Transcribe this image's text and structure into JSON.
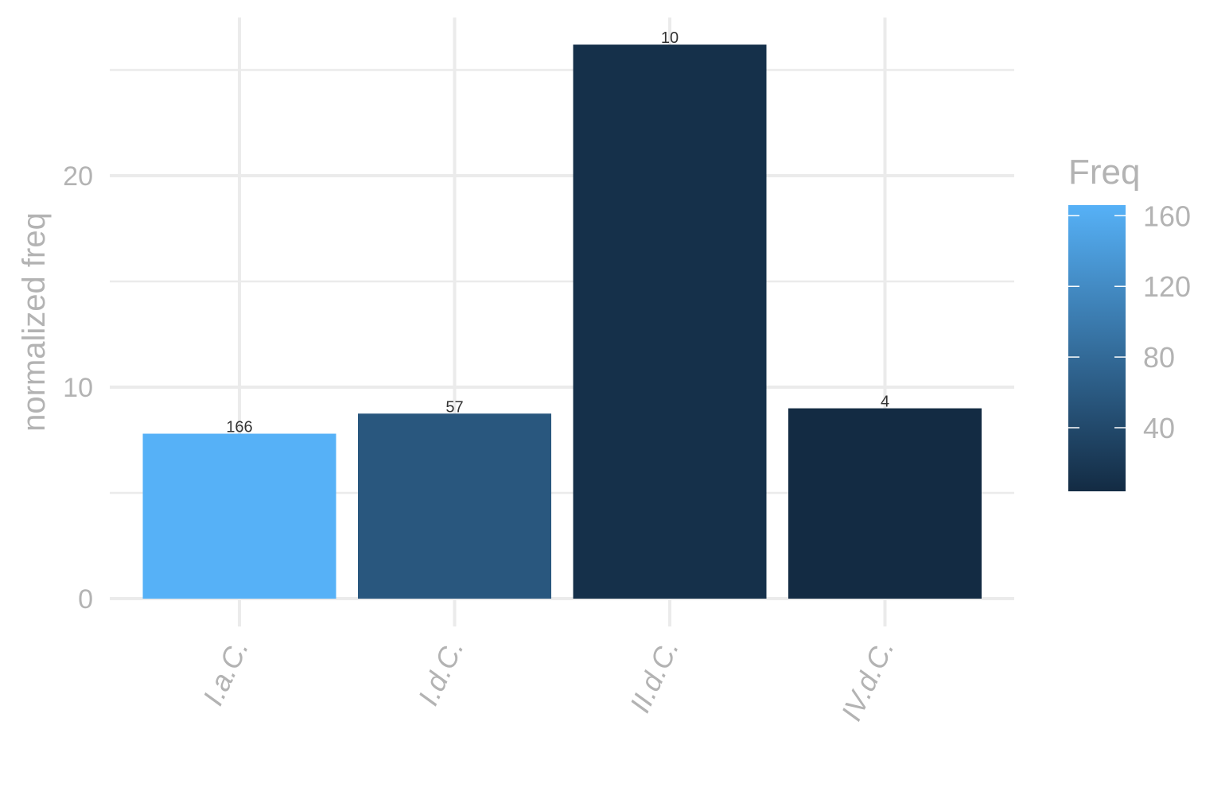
{
  "chart_data": {
    "type": "bar",
    "categories": [
      "I.a.C.",
      "I.d.C.",
      "II.d.C.",
      "IV.d.C."
    ],
    "values": [
      7.8,
      8.75,
      26.2,
      9.0
    ],
    "freq": [
      166,
      57,
      10,
      4
    ],
    "data_labels": [
      "166",
      "57",
      "10",
      "4"
    ],
    "xlabel": "",
    "ylabel": "normalized freq",
    "ylim": [
      0,
      27.5
    ],
    "y_ticks": [
      0,
      10,
      20
    ],
    "y_tick_labels": [
      "0",
      "10",
      "20"
    ],
    "grid": true,
    "legend": {
      "title": "Freq",
      "placement": "right",
      "type": "colorbar",
      "range": [
        4,
        166
      ],
      "ticks": [
        40,
        80,
        120,
        160
      ],
      "tick_labels": [
        "40",
        "80",
        "120",
        "160"
      ],
      "color_low": "#132b43",
      "color_high": "#56b1f7"
    }
  }
}
